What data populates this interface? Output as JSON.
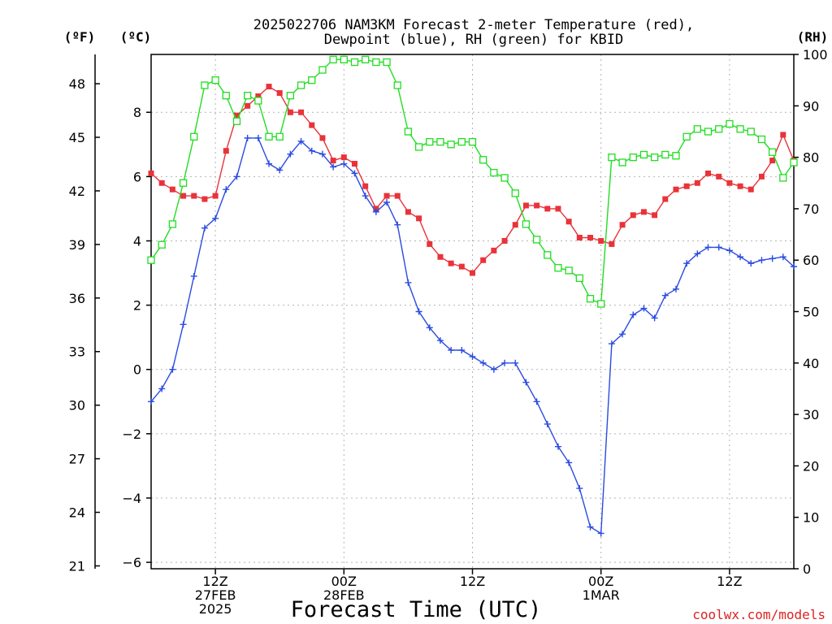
{
  "chart_data": {
    "type": "line",
    "title_lines": [
      "2025022706 NAM3KM Forecast 2-meter Temperature (red),",
      "Dewpoint (blue), RH (green) for KBID"
    ],
    "xlabel": "Forecast Time (UTC)",
    "credit": "coolwx.com/models",
    "unit_labels": {
      "fahrenheit": "(ºF)",
      "celsius": "(ºC)",
      "rh": "(RH)"
    },
    "x_unit": "forecast hour",
    "x_range": [
      0,
      60
    ],
    "x_ticks": [
      {
        "x": 6,
        "lines": [
          "12Z",
          "27FEB",
          "2025"
        ]
      },
      {
        "x": 18,
        "lines": [
          "00Z",
          "28FEB"
        ]
      },
      {
        "x": 30,
        "lines": [
          "12Z"
        ]
      },
      {
        "x": 42,
        "lines": [
          "00Z",
          "1MAR"
        ]
      },
      {
        "x": 54,
        "lines": [
          "12Z"
        ]
      }
    ],
    "y_celsius": {
      "range": [
        -6.2,
        9.8
      ],
      "ticks": [
        -6,
        -4,
        -2,
        0,
        2,
        4,
        6,
        8
      ]
    },
    "y_fahrenheit": {
      "ticks": [
        21,
        24,
        27,
        30,
        33,
        36,
        39,
        42,
        45,
        48
      ]
    },
    "y_rh": {
      "range": [
        0,
        100
      ],
      "ticks": [
        0,
        10,
        20,
        30,
        40,
        50,
        60,
        70,
        80,
        90,
        100
      ]
    },
    "grid": true,
    "series": [
      {
        "name": "Temperature",
        "axis": "celsius",
        "color": "#e8333a",
        "marker": "filled-square",
        "x": [
          0,
          1,
          2,
          3,
          4,
          5,
          6,
          7,
          8,
          9,
          10,
          11,
          12,
          13,
          14,
          15,
          16,
          17,
          18,
          19,
          20,
          21,
          22,
          23,
          24,
          25,
          26,
          27,
          28,
          29,
          30,
          31,
          32,
          33,
          34,
          35,
          36,
          37,
          38,
          39,
          40,
          41,
          42,
          43,
          44,
          45,
          46,
          47,
          48,
          49,
          50,
          51,
          52,
          53,
          54,
          55,
          56,
          57,
          58,
          59,
          60
        ],
        "values": [
          6.1,
          5.8,
          5.6,
          5.4,
          5.4,
          5.3,
          5.4,
          6.8,
          7.9,
          8.2,
          8.5,
          8.8,
          8.6,
          8.0,
          8.0,
          7.6,
          7.2,
          6.5,
          6.6,
          6.4,
          5.7,
          5.0,
          5.4,
          5.4,
          4.9,
          4.7,
          3.9,
          3.5,
          3.3,
          3.2,
          3.0,
          3.4,
          3.7,
          4.0,
          4.5,
          5.1,
          5.1,
          5.0,
          5.0,
          4.6,
          4.1,
          4.1,
          4.0,
          3.9,
          4.5,
          4.8,
          4.9,
          4.8,
          5.3,
          5.6,
          5.7,
          5.8,
          6.1,
          6.0,
          5.8,
          5.7,
          5.6,
          6.0,
          6.5,
          7.3,
          6.5
        ]
      },
      {
        "name": "Dewpoint",
        "axis": "celsius",
        "color": "#2a4be0",
        "marker": "plus",
        "x": [
          0,
          1,
          2,
          3,
          4,
          5,
          6,
          7,
          8,
          9,
          10,
          11,
          12,
          13,
          14,
          15,
          16,
          17,
          18,
          19,
          20,
          21,
          22,
          23,
          24,
          25,
          26,
          27,
          28,
          29,
          30,
          31,
          32,
          33,
          34,
          35,
          36,
          37,
          38,
          39,
          40,
          41,
          42,
          43,
          44,
          45,
          46,
          47,
          48,
          49,
          50,
          51,
          52,
          53,
          54,
          55,
          56,
          57,
          58,
          59,
          60
        ],
        "values": [
          -1.0,
          -0.6,
          0.0,
          1.4,
          2.9,
          4.4,
          4.7,
          5.6,
          6.0,
          7.2,
          7.2,
          6.4,
          6.2,
          6.7,
          7.1,
          6.8,
          6.7,
          6.3,
          6.4,
          6.1,
          5.4,
          4.9,
          5.2,
          4.5,
          2.7,
          1.8,
          1.3,
          0.9,
          0.6,
          0.6,
          0.4,
          0.2,
          0.0,
          0.2,
          0.2,
          -0.4,
          -1.0,
          -1.7,
          -2.4,
          -2.9,
          -3.7,
          -4.9,
          -5.1,
          0.8,
          1.1,
          1.7,
          1.9,
          1.6,
          2.3,
          2.5,
          3.3,
          3.6,
          3.8,
          3.8,
          3.7,
          3.5,
          3.3,
          3.4,
          3.45,
          3.5,
          3.2
        ]
      },
      {
        "name": "RH",
        "axis": "rh",
        "color": "#22dd22",
        "marker": "open-square",
        "x": [
          0,
          1,
          2,
          3,
          4,
          5,
          6,
          7,
          8,
          9,
          10,
          11,
          12,
          13,
          14,
          15,
          16,
          17,
          18,
          19,
          20,
          21,
          22,
          23,
          24,
          25,
          26,
          27,
          28,
          29,
          30,
          31,
          32,
          33,
          34,
          35,
          36,
          37,
          38,
          39,
          40,
          41,
          42,
          43,
          44,
          45,
          46,
          47,
          48,
          49,
          50,
          51,
          52,
          53,
          54,
          55,
          56,
          57,
          58,
          59,
          60
        ],
        "values": [
          60,
          63,
          67,
          75,
          84,
          94,
          95,
          92,
          87,
          92,
          91,
          84,
          84,
          92,
          94,
          95,
          97,
          99,
          99,
          98.5,
          99,
          98.5,
          98.5,
          94,
          85,
          82,
          83,
          83,
          82.5,
          83,
          83,
          79.5,
          77,
          76,
          73,
          67,
          64,
          61,
          58.5,
          58,
          56.5,
          52.5,
          51.5,
          80,
          79,
          80,
          80.5,
          80,
          80.5,
          80.3,
          84,
          85.5,
          85,
          85.5,
          86.5,
          85.5,
          85,
          83.5,
          81,
          76,
          79
        ]
      }
    ]
  }
}
